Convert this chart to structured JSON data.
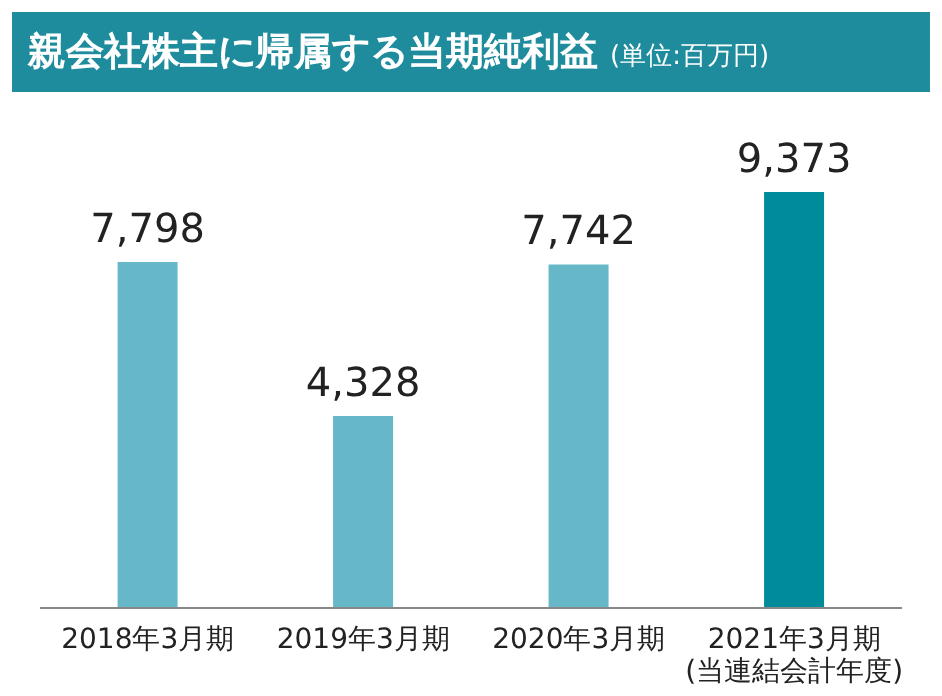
{
  "chart_data": {
    "type": "bar",
    "title": "親会社株主に帰属する当期純利益",
    "subtitle": "(単位:百万円)",
    "categories": [
      "2018年3月期",
      "2019年3月期",
      "2020年3月期",
      "2021年3月期(当連結会計年度)"
    ],
    "values": [
      7798,
      4328,
      7742,
      9373
    ],
    "colors": [
      "#66b8c8",
      "#66b8c8",
      "#66b8c8",
      "#008b9b"
    ],
    "value_labels": [
      "7,798",
      "4,328",
      "7,742",
      "9,373"
    ]
  }
}
